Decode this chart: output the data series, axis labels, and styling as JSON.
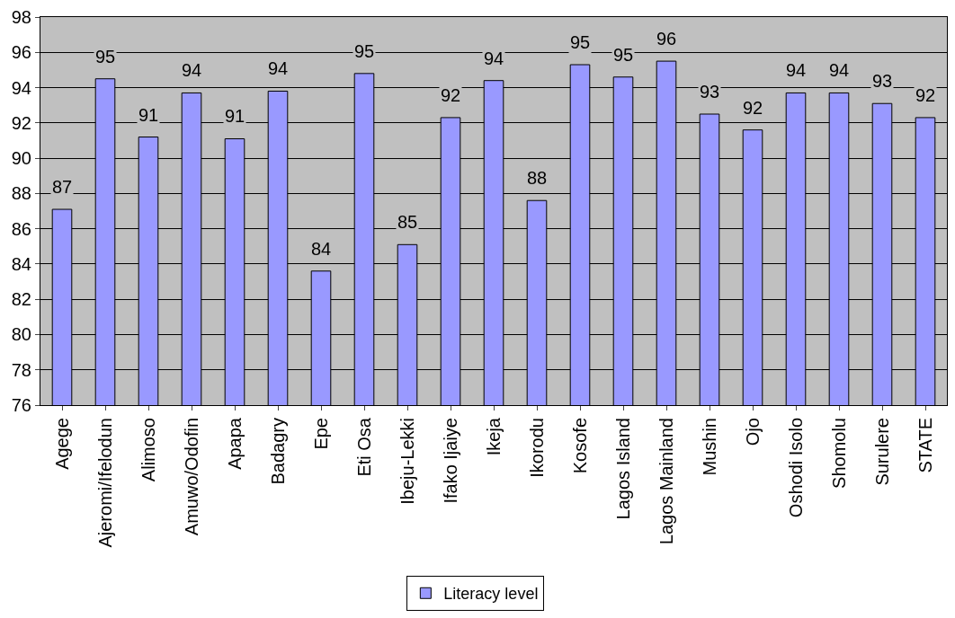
{
  "chart_data": {
    "type": "bar",
    "categories": [
      "Agege",
      "Ajeromi/Ifelodun",
      "Alimoso",
      "Amuwo/Odofin",
      "Apapa",
      "Badagry",
      "Epe",
      "Eti Osa",
      "Ibeju-Lekki",
      "Ifako Ijaiye",
      "Ikeja",
      "Ikorodu",
      "Kosofe",
      "Lagos Island",
      "Lagos Mainland",
      "Mushin",
      "Ojo",
      "Oshodi Isolo",
      "Shomolu",
      "Surulere",
      "STATE"
    ],
    "series": [
      {
        "name": "Literacy level",
        "color": "#9999ff",
        "values": [
          87.1,
          94.5,
          91.2,
          93.7,
          91.1,
          93.8,
          83.6,
          94.8,
          85.1,
          92.3,
          94.4,
          87.6,
          95.3,
          94.6,
          95.5,
          92.5,
          91.6,
          93.7,
          93.7,
          93.1,
          92.3
        ],
        "value_labels": [
          "87",
          "95",
          "91",
          "94",
          "91",
          "94",
          "84",
          "95",
          "85",
          "92",
          "94",
          "88",
          "95",
          "95",
          "96",
          "93",
          "92",
          "94",
          "94",
          "93",
          "92"
        ]
      }
    ],
    "ylim": [
      76,
      98
    ],
    "yticks": [
      76,
      78,
      80,
      82,
      84,
      86,
      88,
      90,
      92,
      94,
      96,
      98
    ],
    "grid": "y",
    "legend": "bottom"
  }
}
